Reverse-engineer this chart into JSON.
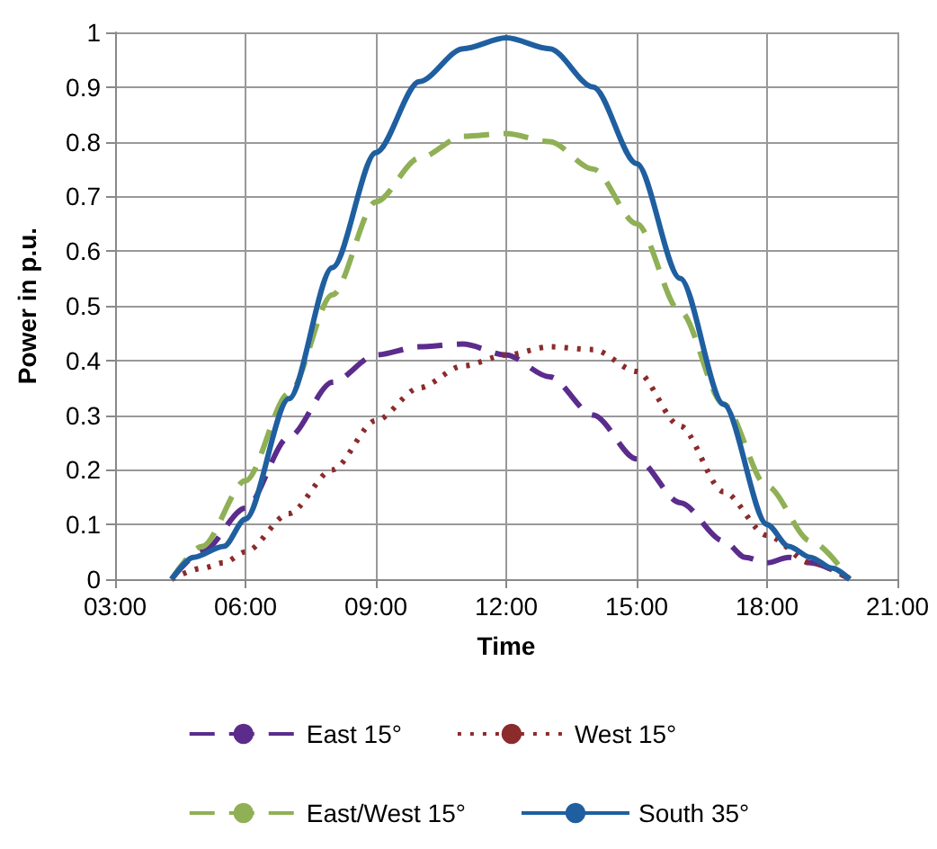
{
  "chart_data": {
    "type": "line",
    "xlabel": "Time",
    "ylabel": "Power in p.u.",
    "xlim": [
      3,
      21
    ],
    "xticks": [
      {
        "value": 3,
        "label": "03:00"
      },
      {
        "value": 6,
        "label": "06:00"
      },
      {
        "value": 9,
        "label": "09:00"
      },
      {
        "value": 12,
        "label": "12:00"
      },
      {
        "value": 15,
        "label": "15:00"
      },
      {
        "value": 18,
        "label": "18:00"
      },
      {
        "value": 21,
        "label": "21:00"
      }
    ],
    "ylim": [
      0,
      1
    ],
    "yticks": [
      0,
      0.1,
      0.2,
      0.3,
      0.4,
      0.5,
      0.6,
      0.7,
      0.8,
      0.9,
      1
    ],
    "grid": true,
    "legend": "bottom",
    "marker": "none",
    "series": [
      {
        "name": "East 15°",
        "color": "#5b2c8c",
        "line_style": "dashed",
        "x": [
          4.3,
          5,
          6,
          7,
          8,
          9,
          10,
          11,
          12,
          13,
          14,
          15,
          16,
          17,
          17.5,
          18,
          18.5,
          19,
          19.9
        ],
        "values": [
          0,
          0.05,
          0.13,
          0.26,
          0.36,
          0.41,
          0.425,
          0.43,
          0.41,
          0.37,
          0.3,
          0.22,
          0.14,
          0.07,
          0.04,
          0.03,
          0.04,
          0.03,
          0
        ]
      },
      {
        "name": "West 15°",
        "color": "#8b2b2b",
        "line_style": "dotted",
        "x": [
          4.3,
          5,
          5.5,
          6,
          7,
          8,
          9,
          10,
          11,
          12,
          13,
          14,
          15,
          16,
          17,
          18,
          19,
          19.9
        ],
        "values": [
          0,
          0.02,
          0.03,
          0.05,
          0.12,
          0.2,
          0.29,
          0.35,
          0.39,
          0.41,
          0.425,
          0.42,
          0.38,
          0.28,
          0.16,
          0.08,
          0.03,
          0
        ]
      },
      {
        "name": "East/West 15°",
        "color": "#8fb055",
        "line_style": "dashed",
        "x": [
          4.3,
          5,
          6,
          7,
          8,
          9,
          10,
          11,
          12,
          13,
          14,
          15,
          16,
          17,
          18,
          19,
          19.9
        ],
        "values": [
          0,
          0.06,
          0.18,
          0.34,
          0.52,
          0.69,
          0.77,
          0.81,
          0.815,
          0.8,
          0.75,
          0.65,
          0.49,
          0.32,
          0.17,
          0.07,
          0
        ]
      },
      {
        "name": "South 35°",
        "color": "#1f5fa0",
        "line_style": "solid",
        "x": [
          4.3,
          4.8,
          5.5,
          6,
          7,
          8,
          9,
          10,
          11,
          12,
          13,
          14,
          15,
          16,
          17,
          18,
          18.5,
          19,
          19.5,
          19.9
        ],
        "values": [
          0,
          0.04,
          0.06,
          0.11,
          0.33,
          0.57,
          0.78,
          0.91,
          0.97,
          0.99,
          0.97,
          0.9,
          0.76,
          0.55,
          0.32,
          0.1,
          0.06,
          0.04,
          0.02,
          0
        ]
      }
    ]
  }
}
